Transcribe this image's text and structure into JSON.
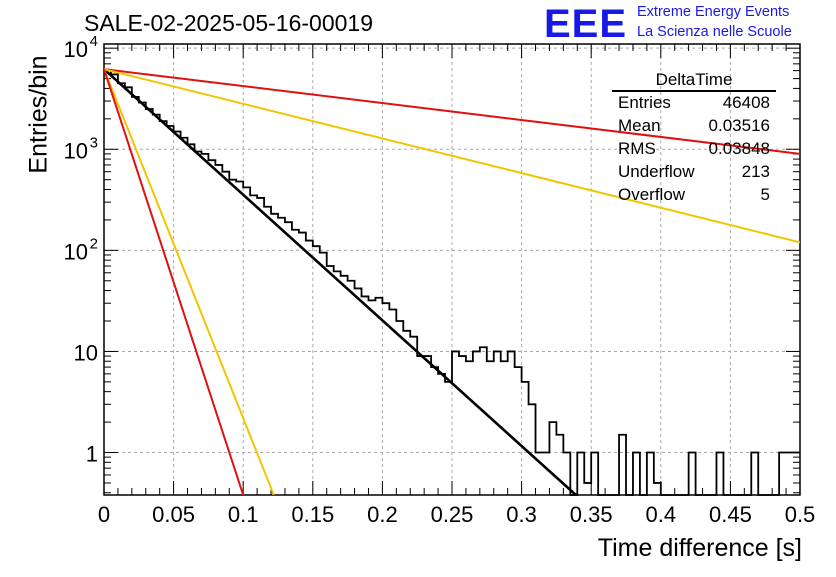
{
  "header": {
    "title": "SALE-02-2025-05-16-00019",
    "logo_text": "EEE",
    "logo_line1": "Extreme Energy Events",
    "logo_line2": "La Scienza nelle Scuole"
  },
  "stats": {
    "name": "DeltaTime",
    "rows": [
      {
        "label": "Entries",
        "value": "46408"
      },
      {
        "label": "Mean",
        "value": "0.03516"
      },
      {
        "label": "RMS",
        "value": "0.03848"
      },
      {
        "label": "Underflow",
        "value": "213"
      },
      {
        "label": "Overflow",
        "value": "5"
      }
    ]
  },
  "colors": {
    "histogram": "#000000",
    "fit": "#000000",
    "red": "#e01010",
    "yellow": "#f5c400"
  },
  "chart_data": {
    "type": "line",
    "title": "SALE-02-2025-05-16-00019",
    "xlabel": "Time difference [s]",
    "ylabel": "Entries/bin",
    "xlim": [
      0,
      0.5
    ],
    "ylim": [
      0.38,
      11000
    ],
    "yscale": "log",
    "grid": true,
    "legend": "top-right",
    "x_ticks": [
      "0",
      "0.05",
      "0.1",
      "0.15",
      "0.2",
      "0.25",
      "0.3",
      "0.35",
      "0.4",
      "0.45",
      "0.5"
    ],
    "y_ticks": [
      {
        "value": 10000,
        "base": "10",
        "exp": "4"
      },
      {
        "value": 1000,
        "base": "10",
        "exp": "3"
      },
      {
        "value": 100,
        "base": "10",
        "exp": "2"
      },
      {
        "value": 10,
        "base": "10",
        "exp": ""
      },
      {
        "value": 1,
        "base": "1",
        "exp": ""
      }
    ],
    "histogram": {
      "bin_width": 0.005,
      "values": [
        6100,
        5500,
        4500,
        4100,
        3300,
        2900,
        2500,
        2200,
        1900,
        1700,
        1500,
        1300,
        1120,
        950,
        900,
        780,
        700,
        600,
        500,
        480,
        420,
        350,
        330,
        270,
        230,
        210,
        190,
        160,
        150,
        125,
        110,
        95,
        70,
        62,
        56,
        50,
        42,
        35,
        32,
        34,
        30,
        26,
        20,
        16,
        14,
        9,
        9,
        7,
        6,
        5,
        10,
        9,
        8,
        10,
        11,
        8,
        10,
        8,
        10,
        7,
        5,
        3,
        1,
        1,
        2,
        1.5,
        1,
        0.3,
        1,
        0.5,
        1,
        0.3,
        0.3,
        0.3,
        1.5,
        0.3,
        1,
        0.3,
        1,
        0.5,
        0.3,
        0.3,
        0.3,
        0.3,
        1,
        0.3,
        0.3,
        0.3,
        1,
        0.3,
        0.3,
        0.3,
        0.3,
        1,
        0.3,
        0.3,
        0.3,
        1,
        1,
        1
      ]
    },
    "series": [
      {
        "color": "black",
        "points": [
          [
            0,
            6200
          ],
          [
            0.339,
            0.38
          ]
        ]
      },
      {
        "color": "red",
        "points": [
          [
            0,
            6200
          ],
          [
            0.5,
            900
          ]
        ]
      },
      {
        "color": "yellow",
        "points": [
          [
            0,
            6200
          ],
          [
            0.5,
            120
          ]
        ]
      },
      {
        "color": "yellow",
        "points": [
          [
            0,
            6200
          ],
          [
            0.122,
            0.38
          ]
        ]
      },
      {
        "color": "red",
        "points": [
          [
            0,
            6200
          ],
          [
            0.1,
            0.38
          ]
        ]
      }
    ]
  }
}
